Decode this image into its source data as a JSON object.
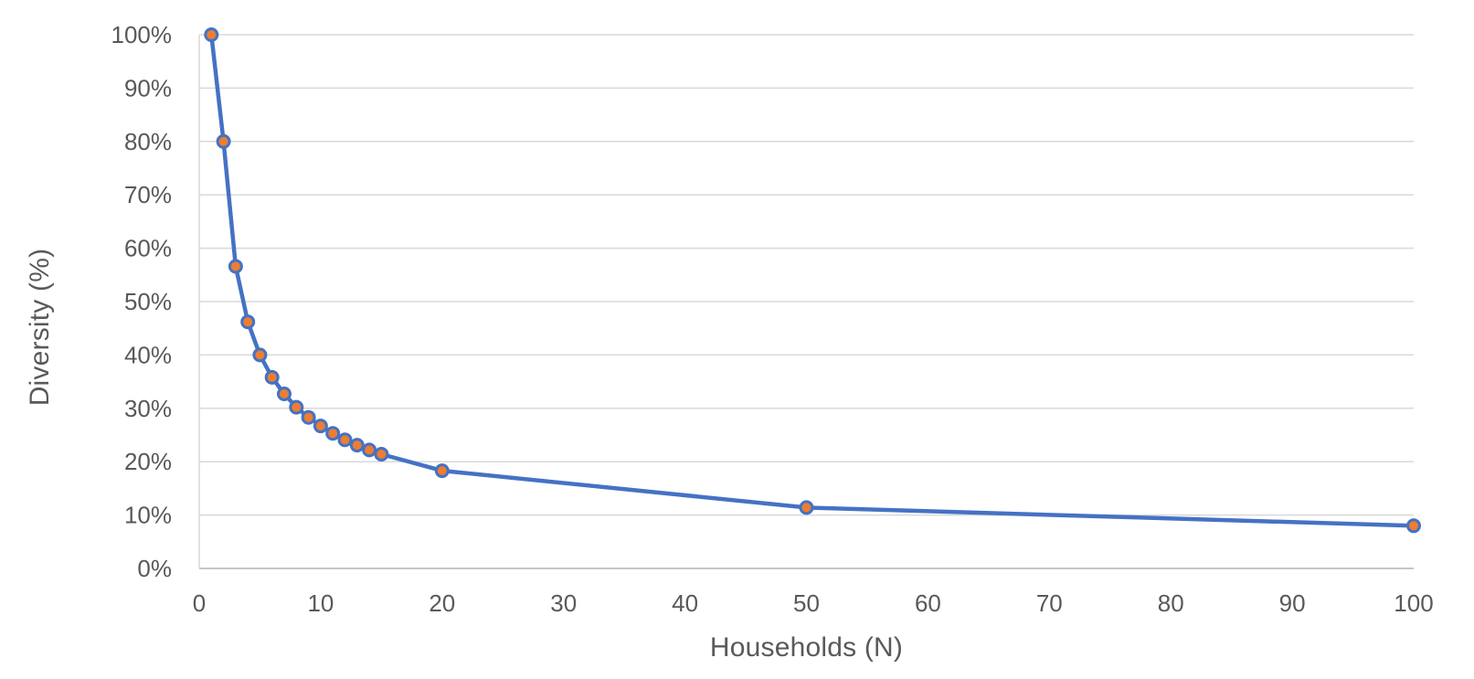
{
  "chart_data": {
    "type": "line",
    "xlabel": "Households (N)",
    "ylabel": "Diversity (%)",
    "x": [
      1,
      2,
      3,
      4,
      5,
      6,
      7,
      8,
      9,
      10,
      11,
      12,
      13,
      14,
      15,
      20,
      50,
      100
    ],
    "y": [
      100,
      80,
      56.6,
      46.2,
      40,
      35.8,
      32.7,
      30.2,
      28.3,
      26.7,
      25.3,
      24.1,
      23.1,
      22.2,
      21.4,
      18.3,
      11.4,
      8
    ],
    "y_unit": "%",
    "xlim": [
      0,
      100
    ],
    "ylim": [
      0,
      100
    ],
    "x_tick_values": [
      0,
      10,
      20,
      30,
      40,
      50,
      60,
      70,
      80,
      90,
      100
    ],
    "x_tick_labels": [
      "0",
      "10",
      "20",
      "30",
      "40",
      "50",
      "60",
      "70",
      "80",
      "90",
      "100"
    ],
    "y_tick_values": [
      0,
      10,
      20,
      30,
      40,
      50,
      60,
      70,
      80,
      90,
      100
    ],
    "y_tick_labels": [
      "0%",
      "10%",
      "20%",
      "30%",
      "40%",
      "50%",
      "60%",
      "70%",
      "80%",
      "90%",
      "100%"
    ],
    "grid": "horizontal",
    "legend": "none",
    "colors": {
      "line": "#4472C4",
      "marker_fill": "#ED7D31",
      "marker_border": "#4472C4",
      "gridline": "#D9D9D9",
      "axis_line": "#C6C6C6",
      "label": "#595959",
      "background": "#FFFFFF"
    }
  }
}
